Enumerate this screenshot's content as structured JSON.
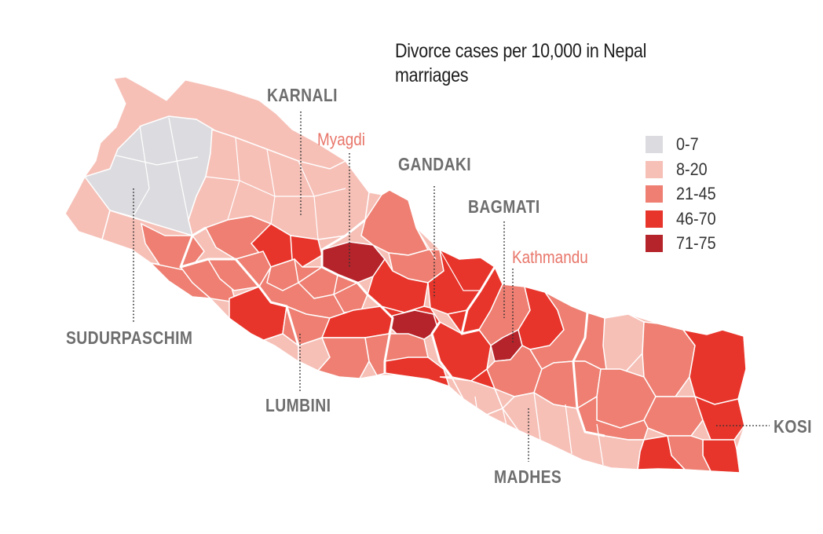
{
  "title": "Divorce cases per 10,000 in Nepal marriages",
  "colors": {
    "bin_0_7": "#dcdce0",
    "bin_8_20": "#f6c0b7",
    "bin_21_45": "#ee7f72",
    "bin_46_70": "#e8352b",
    "bin_71_75": "#b5242a",
    "border": "#ffffff",
    "leader_line": "#333333"
  },
  "legend": [
    {
      "label": "0-7",
      "color": "#dcdce0"
    },
    {
      "label": "8-20",
      "color": "#f6c0b7"
    },
    {
      "label": "21-45",
      "color": "#ee7f72"
    },
    {
      "label": "46-70",
      "color": "#e8352b"
    },
    {
      "label": "71-75",
      "color": "#b5242a"
    }
  ],
  "provinces": {
    "karnali": "KARNALI",
    "gandaki": "GANDAKI",
    "bagmati": "BAGMATI",
    "sudurpaschim": "SUDURPASCHIM",
    "lumbini": "LUMBINI",
    "madhes": "MADHES",
    "kosi": "KOSI"
  },
  "districts": {
    "myagdi": "Myagdi",
    "kathmandu": "Kathmandu"
  }
}
